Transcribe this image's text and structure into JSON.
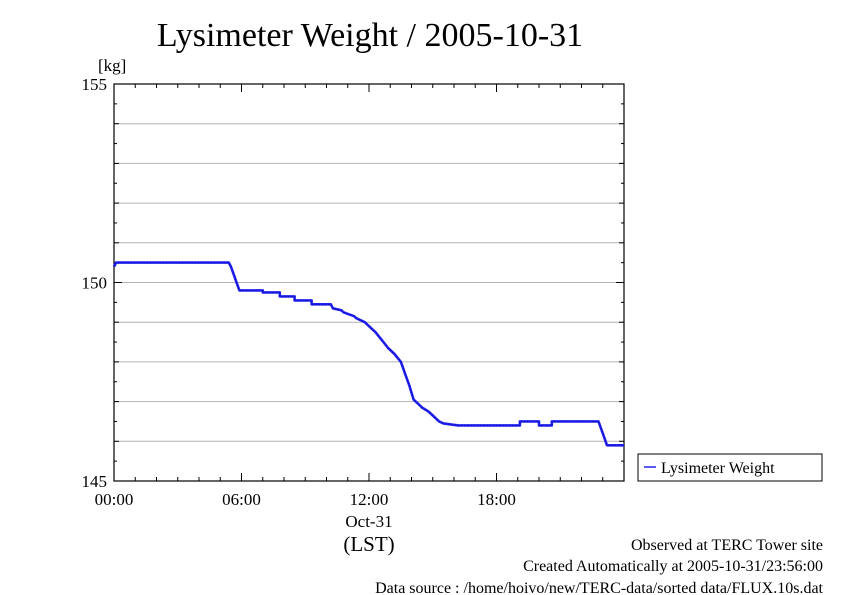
{
  "chart_data": {
    "type": "line",
    "title": "Lysimeter Weight / 2005-10-31",
    "yunit": "[kg]",
    "ylim": [
      145,
      155
    ],
    "yticks": [
      145,
      150,
      155
    ],
    "xlim_hours": [
      0,
      24
    ],
    "xticks": [
      {
        "hour": 0,
        "label": "00:00"
      },
      {
        "hour": 6,
        "label": "06:00"
      },
      {
        "hour": 12,
        "label": "12:00"
      },
      {
        "hour": 18,
        "label": "18:00"
      }
    ],
    "date_label": "Oct-31",
    "time_zone_label": "(LST)",
    "grid": true,
    "legend_position": "right",
    "series": [
      {
        "name": "Lysimeter Weight",
        "color": "#2222ee",
        "x_hours": [
          0.0,
          0.1,
          5.4,
          5.5,
          5.9,
          7.0,
          7.0,
          7.8,
          7.8,
          8.5,
          8.5,
          9.3,
          9.3,
          10.2,
          10.3,
          10.7,
          10.8,
          11.3,
          11.4,
          11.8,
          12.0,
          12.3,
          12.6,
          12.9,
          13.2,
          13.5,
          13.7,
          13.9,
          14.1,
          14.3,
          14.5,
          14.8,
          15.1,
          15.3,
          15.5,
          16.2,
          19.1,
          19.1,
          20.0,
          20.0,
          20.6,
          20.6,
          22.8,
          23.0,
          23.2,
          24.0
        ],
        "values": [
          150.4,
          150.5,
          150.5,
          150.4,
          149.8,
          149.8,
          149.75,
          149.75,
          149.65,
          149.65,
          149.55,
          149.55,
          149.45,
          149.45,
          149.35,
          149.3,
          149.25,
          149.15,
          149.1,
          149.0,
          148.9,
          148.75,
          148.55,
          148.35,
          148.2,
          148.0,
          147.7,
          147.4,
          147.05,
          146.95,
          146.85,
          146.75,
          146.6,
          146.5,
          146.45,
          146.4,
          146.4,
          146.5,
          146.5,
          146.4,
          146.4,
          146.5,
          146.5,
          146.2,
          145.9,
          145.9
        ]
      }
    ]
  },
  "footer": {
    "line1": "Observed at TERC Tower site",
    "line2": "Created Automatically at 2005-10-31/23:56:00",
    "line3": "Data source : /home/hoivo/new/TERC-data/sorted  data/FLUX.10s.dat"
  }
}
